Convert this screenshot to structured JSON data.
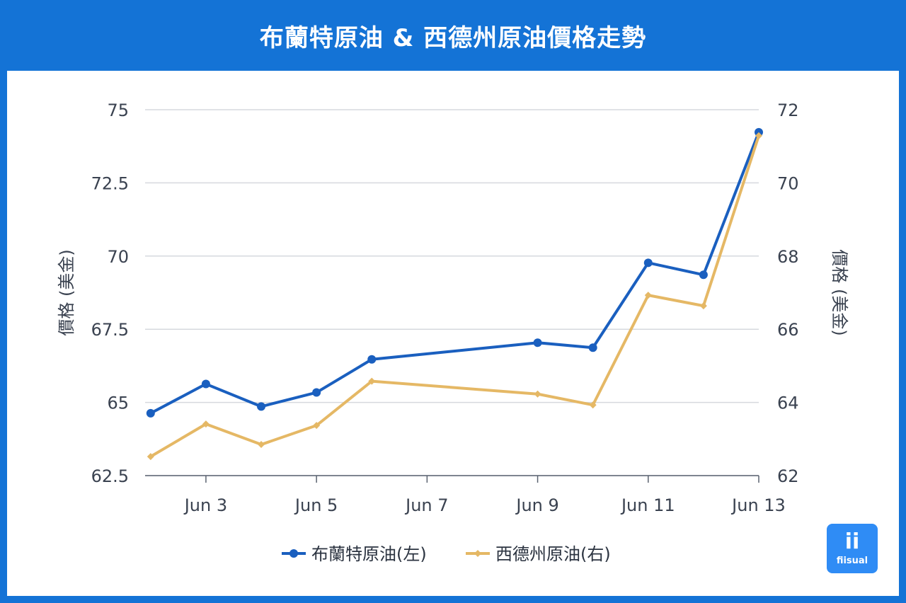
{
  "title": "布蘭特原油 & 西德州原油價格走勢",
  "brand": {
    "mark": "ii",
    "name": "fiisual"
  },
  "colors": {
    "background": "#1473d6",
    "brent": "#1a5fbf",
    "wti": "#e5b865",
    "grid": "#d6d9de"
  },
  "chart_data": {
    "type": "line",
    "title": "布蘭特原油 & 西德州原油價格走勢",
    "x": [
      "Jun 2",
      "Jun 3",
      "Jun 4",
      "Jun 5",
      "Jun 6",
      "Jun 9",
      "Jun 10",
      "Jun 11",
      "Jun 12",
      "Jun 13"
    ],
    "x_day": [
      2,
      3,
      4,
      5,
      6,
      9,
      10,
      11,
      12,
      13
    ],
    "x_ticks": [
      "Jun 3",
      "Jun 5",
      "Jun 7",
      "Jun 9",
      "Jun 11",
      "Jun 13"
    ],
    "x_tick_day": [
      3,
      5,
      7,
      9,
      11,
      13
    ],
    "x_range_day": [
      1.9,
      13
    ],
    "ylabel_left": "價格 (美金)",
    "ylabel_right": "價格 (美金)",
    "ylim_left": [
      62.5,
      75
    ],
    "yticks_left": [
      "62.5",
      "65",
      "67.5",
      "70",
      "72.5",
      "75"
    ],
    "ylim_right": [
      62,
      72
    ],
    "yticks_right": [
      "62",
      "64",
      "66",
      "68",
      "70",
      "72"
    ],
    "grid": true,
    "legend_position": "bottom",
    "series": [
      {
        "name": "布蘭特原油(左)",
        "axis": "left",
        "color": "#1a5fbf",
        "marker": "circle",
        "values": [
          64.63,
          65.63,
          64.86,
          65.34,
          66.47,
          67.04,
          66.87,
          69.77,
          69.36,
          74.23
        ]
      },
      {
        "name": "西德州原油(右)",
        "axis": "right",
        "color": "#e5b865",
        "marker": "diamond",
        "values": [
          62.52,
          63.41,
          62.85,
          63.37,
          64.58,
          64.23,
          63.93,
          66.93,
          66.64,
          71.29
        ]
      }
    ]
  }
}
